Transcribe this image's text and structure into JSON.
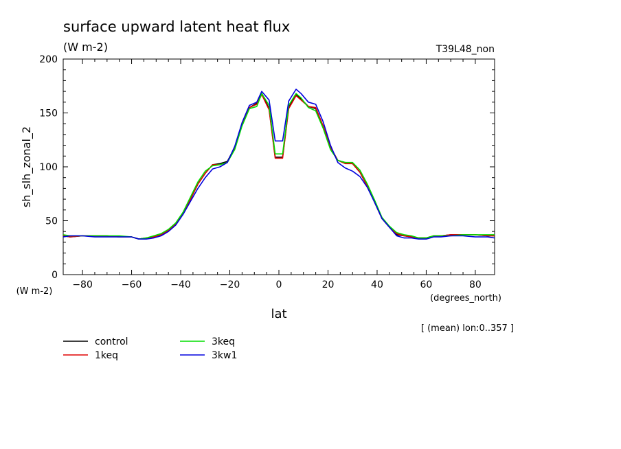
{
  "chart_data": {
    "type": "line",
    "title": "surface upward latent heat flux",
    "subtitle": "(W m-2)",
    "run_label": "T39L48_non",
    "ylabel": "sh_slh_zonal_2",
    "yunit": "(W m-2)",
    "xlabel": "lat",
    "xunit": "(degrees_north)",
    "note": "[ (mean) lon:0..357 ]",
    "xlim": [
      -87.86,
      87.86
    ],
    "ylim": [
      0,
      200
    ],
    "xticks": [
      -80,
      -60,
      -40,
      -20,
      0,
      20,
      40,
      60,
      80
    ],
    "xtick_labels": [
      "−80",
      "−60",
      "−40",
      "−20",
      "0",
      "20",
      "40",
      "60",
      "80"
    ],
    "yticks": [
      0,
      50,
      100,
      150,
      200
    ],
    "grid": false,
    "legend_position": "bottom-left",
    "x": [
      -87.86,
      -85,
      -80,
      -75,
      -70,
      -65,
      -60,
      -57,
      -54,
      -51,
      -48,
      -45,
      -42,
      -39,
      -36,
      -33,
      -30,
      -27,
      -24,
      -21,
      -18,
      -15,
      -12,
      -9,
      -7,
      -4,
      -1.5,
      1.5,
      4,
      7,
      9,
      12,
      15,
      18,
      21,
      24,
      27,
      30,
      33,
      36,
      39,
      42,
      45,
      48,
      51,
      54,
      57,
      60,
      63,
      66,
      70,
      75,
      80,
      85,
      87.86
    ],
    "series": [
      {
        "name": "control",
        "color": "#000000",
        "values": [
          36,
          35,
          36,
          36,
          36,
          35,
          35,
          33,
          34,
          35,
          37,
          41,
          47,
          57,
          70,
          84,
          94,
          102,
          103,
          105,
          118,
          140,
          155,
          159,
          168,
          154,
          109,
          109,
          155,
          167,
          163,
          156,
          154,
          138,
          118,
          106,
          104,
          103,
          95,
          82,
          67,
          52,
          44,
          37,
          36,
          35,
          34,
          34,
          36,
          36,
          37,
          37,
          37,
          36,
          36
        ]
      },
      {
        "name": "1keq",
        "color": "#e00000",
        "values": [
          36,
          35,
          36,
          36,
          36,
          35,
          35,
          33,
          34,
          35,
          37,
          41,
          47,
          57,
          70,
          84,
          94,
          102,
          102,
          104,
          118,
          140,
          155,
          158,
          167,
          153,
          108,
          108,
          154,
          166,
          162,
          156,
          155,
          138,
          118,
          106,
          103,
          103,
          95,
          82,
          67,
          52,
          44,
          38,
          36,
          35,
          34,
          34,
          36,
          36,
          37,
          37,
          37,
          36,
          36
        ]
      },
      {
        "name": "3keq",
        "color": "#00dd00",
        "values": [
          37,
          36,
          36,
          36,
          36,
          36,
          35,
          33,
          34,
          36,
          38,
          42,
          48,
          58,
          72,
          86,
          96,
          101,
          102,
          104,
          116,
          138,
          154,
          156,
          168,
          157,
          112,
          112,
          157,
          168,
          164,
          155,
          152,
          136,
          116,
          106,
          104,
          104,
          97,
          84,
          69,
          53,
          45,
          39,
          37,
          36,
          34,
          34,
          36,
          36,
          36,
          37,
          37,
          37,
          37
        ]
      },
      {
        "name": "3kw1",
        "color": "#0000dd",
        "values": [
          35,
          36,
          36,
          35,
          35,
          35,
          35,
          33,
          33,
          34,
          36,
          40,
          46,
          56,
          68,
          80,
          90,
          98,
          100,
          104,
          119,
          141,
          157,
          160,
          170,
          162,
          124,
          124,
          161,
          172,
          168,
          160,
          158,
          142,
          120,
          104,
          99,
          96,
          91,
          81,
          67,
          52,
          44,
          36,
          34,
          34,
          33,
          33,
          35,
          35,
          36,
          36,
          35,
          35,
          34
        ]
      }
    ]
  }
}
